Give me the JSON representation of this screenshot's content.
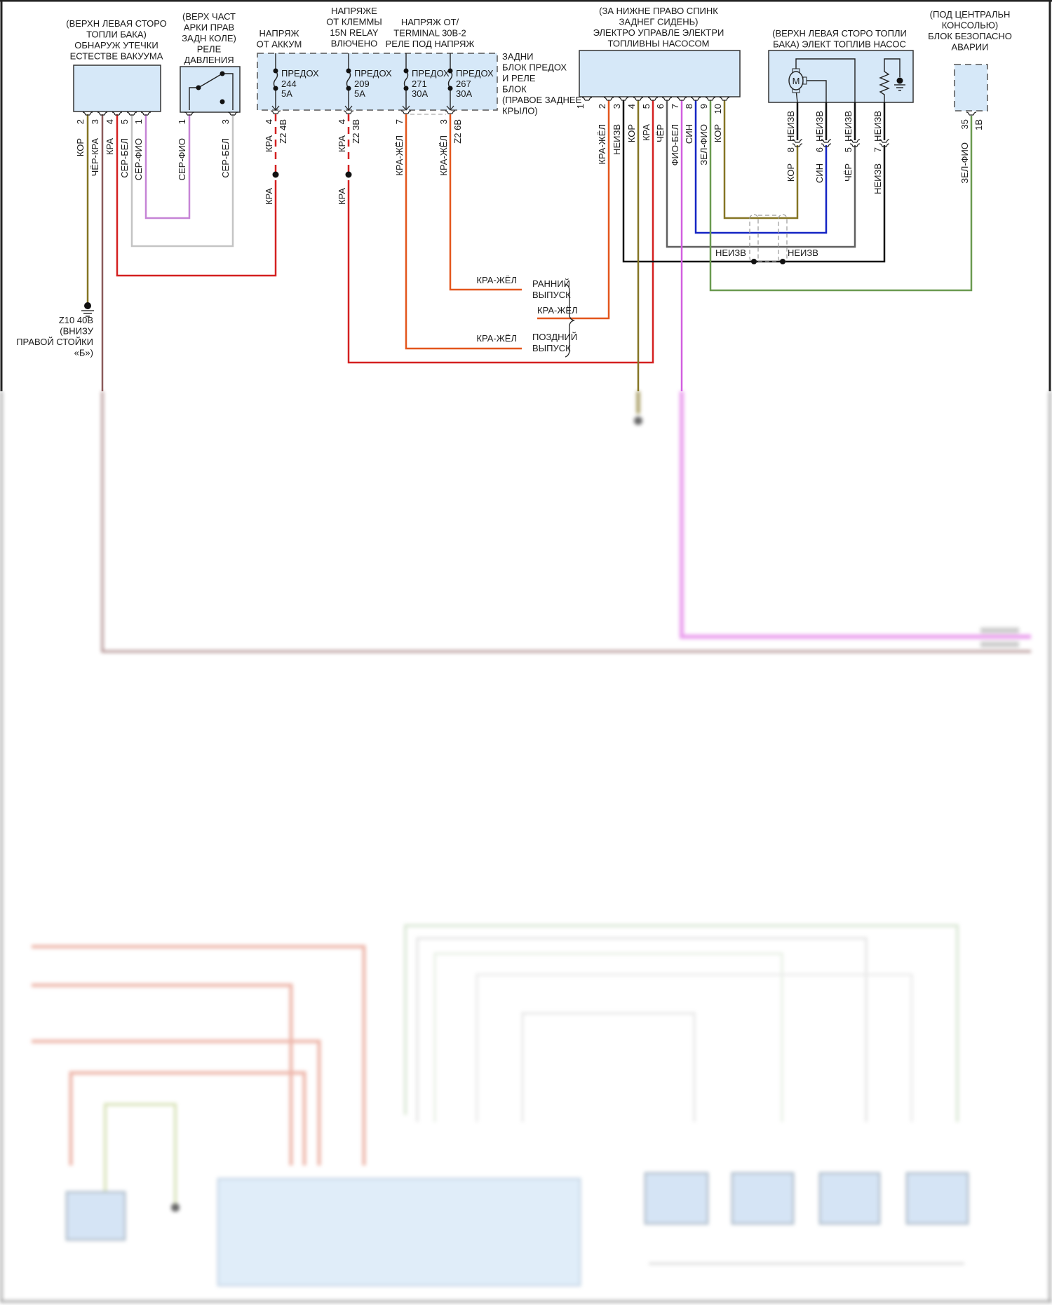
{
  "diagram": {
    "vacuum_leak_module": {
      "label": [
        "(ВЕРХН ЛЕВАЯ СТОРО",
        "ТОПЛИ БАКА)",
        "ОБНАРУЖ УТЕЧКИ",
        "ЕСТЕСТВЕ ВАКУУМА"
      ],
      "pins": [
        {
          "pin": "2",
          "color": "КОР"
        },
        {
          "pin": "3",
          "color": "ЧЁР-КРА"
        },
        {
          "pin": "4",
          "color": "КРА"
        },
        {
          "pin": "5",
          "color": "СЕР-БЕЛ"
        },
        {
          "pin": "1",
          "color": "СЕР-ФИО"
        }
      ]
    },
    "pressure_relay": {
      "label": [
        "(ВЕРХ ЧАСТ",
        "АРКИ ПРАВ",
        "ЗАДН КОЛЕ)",
        "РЕЛЕ",
        "ДАВЛЕНИЯ"
      ],
      "pins": [
        {
          "pin": "1",
          "color": "СЕР-ФИО"
        },
        {
          "pin": "3",
          "color": "СЕР-БЕЛ"
        }
      ]
    },
    "fuse_block": {
      "label": [
        "ЗАДНИ",
        "БЛОК ПРЕДОХ",
        "И РЕЛЕ",
        "БЛОК",
        "(ПРАВОЕ ЗАДНЕЕ",
        "КРЫЛО)"
      ],
      "supply_battery": [
        "НАПРЯЖ",
        "ОТ АККУМ"
      ],
      "supply_15n": [
        "НАПРЯЖЕ",
        "ОТ КЛЕММЫ",
        "15N RELAY",
        "ВЛЮЧЕНО"
      ],
      "supply_30b": [
        "НАПРЯЖ ОТ/",
        "TERMINAL 30B-2",
        "РЕЛЕ ПОД НАПРЯЖ"
      ],
      "fuses": [
        {
          "name": "ПРЕДОХ",
          "number": "244",
          "rating": "5A",
          "pin": "4",
          "connector": "Z2 4В",
          "color": "КРА",
          "color_below": "КРА"
        },
        {
          "name": "ПРЕДОХ",
          "number": "209",
          "rating": "5A",
          "pin": "4",
          "connector": "Z2 3В",
          "color": "КРА",
          "color_below": "КРА"
        },
        {
          "name": "ПРЕДОХ",
          "number": "271",
          "rating": "30A",
          "pin": "7",
          "color": "КРА-ЖЁЛ"
        },
        {
          "name": "ПРЕДОХ",
          "number": "267",
          "rating": "30A",
          "pin": "3",
          "connector": "Z2 6В",
          "color": "КРА-ЖЁЛ"
        }
      ]
    },
    "ground": [
      "Z10 40В",
      "(ВНИЗУ",
      "ПРАВОЙ СТОЙКИ",
      "«Б»)"
    ],
    "variants": {
      "early": {
        "wire": "КРА-ЖЁЛ",
        "label": [
          "РАННИЙ",
          "ВЫПУСК"
        ]
      },
      "ecu_wire": "КРА-ЖЁЛ",
      "late": {
        "wire": "КРА-ЖЁЛ",
        "label": [
          "ПОЗДНИЙ",
          "ВЫПУСК"
        ]
      }
    },
    "fuel_pump_ecu": {
      "label": [
        "(ЗА НИЖНЕ ПРАВО СПИНК",
        "ЗАДНЕГ СИДЕНЬ)",
        "ЭЛЕКТРО УПРАВЛЕ ЭЛЕКТРИ",
        "ТОПЛИВНЫ НАСОСОМ"
      ],
      "pins": [
        {
          "pin": "1",
          "color": ""
        },
        {
          "pin": "2",
          "color": "КРА-ЖЁЛ"
        },
        {
          "pin": "3",
          "color": "НЕИЗВ"
        },
        {
          "pin": "4",
          "color": "КОР"
        },
        {
          "pin": "5",
          "color": "КРА"
        },
        {
          "pin": "6",
          "color": "ЧЁР"
        },
        {
          "pin": "7",
          "color": "ФИО-БЕЛ"
        },
        {
          "pin": "8",
          "color": "СИН"
        },
        {
          "pin": "9",
          "color": "ЗЕЛ-ФИО"
        },
        {
          "pin": "10",
          "color": "КОР"
        }
      ]
    },
    "fuel_pump": {
      "label": [
        "(ВЕРХН ЛЕВАЯ СТОРО ТОПЛИ",
        "БАКА) ЭЛЕКТ ТОПЛИВ НАСОС"
      ],
      "motor": "M",
      "pins": [
        {
          "pin": "8",
          "upper": "НЕИЗВ",
          "lower": "КОР"
        },
        {
          "pin": "6",
          "upper": "НЕИЗВ",
          "lower": "СИН"
        },
        {
          "pin": "5",
          "upper": "НЕИЗВ",
          "lower": "ЧЁР"
        },
        {
          "pin": "7",
          "upper": "НЕИЗВ",
          "lower": "НЕИЗВ"
        }
      ]
    },
    "shield_labels": [
      "НЕИЗВ",
      "НЕИЗВ"
    ],
    "safety_unit": {
      "label": [
        "(ПОД ЦЕНТРАЛЬН",
        "КОНСОЛЬЮ)",
        "БЛОК БЕЗОПАСНО",
        "АВАРИИ"
      ],
      "pin": "35",
      "connector": "1В",
      "color": "ЗЕЛ-ФИО"
    }
  },
  "colors": {
    "КОР": "#857524",
    "ЧЁР-КРА": "#8b5a5a",
    "КРА": "#d42020",
    "СЕР-БЕЛ": "#c4c4c4",
    "СЕР-ФИО": "#c684d6",
    "КРА-ЖЁЛ": "#e3561c",
    "НЕИЗВ": "#111111",
    "ЧЁР": "#606060",
    "ФИО-БЕЛ": "#d25ee0",
    "СИН": "#1424c4",
    "ЗЕЛ-ФИО": "#6a9a50",
    "component_fill": "#d6e8f8"
  }
}
